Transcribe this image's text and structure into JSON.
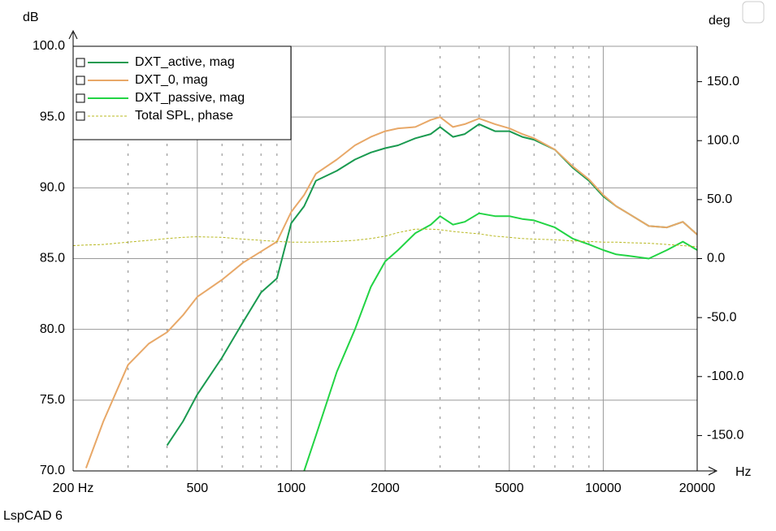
{
  "chart_data": {
    "type": "line",
    "y_label": "dB",
    "y2_label": "deg",
    "x_label": "Hz",
    "footer": "LspCAD 6",
    "xscale": "log",
    "grid": true,
    "legend": "upper left",
    "x": [
      200,
      220,
      250,
      300,
      350,
      400,
      450,
      500,
      600,
      700,
      800,
      900,
      1000,
      1100,
      1200,
      1400,
      1600,
      1800,
      2000,
      2200,
      2500,
      2800,
      3000,
      3300,
      3600,
      4000,
      4500,
      5000,
      5500,
      6000,
      7000,
      8000,
      9000,
      10000,
      11000,
      12000,
      14000,
      16000,
      18000,
      20000
    ],
    "xlim": [
      200,
      20000
    ],
    "xticks": [
      {
        "value": 200,
        "label": "200 Hz"
      },
      500,
      1000,
      2000,
      5000,
      10000,
      20000
    ],
    "xgrid_minor": [
      300,
      400,
      600,
      700,
      800,
      900,
      3000,
      4000,
      6000,
      7000,
      8000,
      9000
    ],
    "ylim": [
      70,
      100
    ],
    "yticks": [
      {
        "value": 70,
        "label": "70.0"
      },
      {
        "value": 75,
        "label": "75.0"
      },
      {
        "value": 80,
        "label": "80.0"
      },
      {
        "value": 85,
        "label": "85.0"
      },
      {
        "value": 90,
        "label": "90.0"
      },
      {
        "value": 95,
        "label": "95.0"
      },
      {
        "value": 100,
        "label": "100.0"
      }
    ],
    "y2lim": [
      -180,
      180
    ],
    "y2ticks": [
      {
        "value": -150,
        "label": "-150.0"
      },
      {
        "value": -100,
        "label": "-100.0"
      },
      {
        "value": -50,
        "label": "-50.0"
      },
      {
        "value": 0,
        "label": "0.0"
      },
      {
        "value": 50,
        "label": "50.0"
      },
      {
        "value": 100,
        "label": "100.0"
      },
      {
        "value": 150,
        "label": "150.0"
      }
    ],
    "series": [
      {
        "name": "DXT_active, mag",
        "color": "#1a9a50",
        "style": "solid",
        "values": [
          null,
          null,
          null,
          null,
          null,
          71.8,
          73.5,
          75.4,
          78.0,
          80.5,
          82.6,
          83.6,
          87.5,
          88.7,
          90.5,
          91.2,
          92.0,
          92.5,
          92.8,
          93.0,
          93.5,
          93.8,
          94.3,
          93.6,
          93.8,
          94.5,
          94.0,
          94.0,
          93.6,
          93.4,
          92.7,
          91.4,
          90.5,
          89.4,
          88.7,
          88.2,
          87.3,
          87.2,
          87.6,
          86.7
        ]
      },
      {
        "name": "DXT_0, mag",
        "color": "#e8a868",
        "style": "solid",
        "values": [
          null,
          70.2,
          73.5,
          77.5,
          79.0,
          79.8,
          81.0,
          82.3,
          83.5,
          84.7,
          85.5,
          86.2,
          88.3,
          89.5,
          91.0,
          92.0,
          93.0,
          93.6,
          94.0,
          94.2,
          94.3,
          94.8,
          95.0,
          94.3,
          94.5,
          94.9,
          94.5,
          94.2,
          93.8,
          93.5,
          92.7,
          91.5,
          90.6,
          89.5,
          88.7,
          88.2,
          87.3,
          87.2,
          87.6,
          86.7
        ]
      },
      {
        "name": "DXT_passive, mag",
        "color": "#22d444",
        "style": "solid",
        "values": [
          null,
          null,
          null,
          null,
          null,
          null,
          null,
          null,
          null,
          null,
          null,
          null,
          null,
          70.0,
          72.5,
          77.0,
          80.0,
          83.0,
          84.8,
          85.6,
          86.8,
          87.4,
          88.0,
          87.4,
          87.6,
          88.2,
          88.0,
          88.0,
          87.8,
          87.7,
          87.2,
          86.4,
          86.0,
          85.6,
          85.3,
          85.2,
          85.0,
          85.6,
          86.2,
          85.6
        ]
      },
      {
        "name": "Total SPL, phase",
        "color": "#b8b820",
        "style": "dashed",
        "axis": "y2",
        "values": [
          11,
          11.5,
          12,
          14,
          15.5,
          17,
          18,
          18.5,
          18,
          16.5,
          15.5,
          14.5,
          14,
          14,
          14,
          14.5,
          15.5,
          17,
          19,
          22,
          25,
          25,
          24.5,
          23,
          22,
          21,
          19,
          18,
          17,
          16.5,
          16,
          15,
          14.5,
          14,
          14,
          13.5,
          13,
          12,
          11,
          10
        ]
      }
    ]
  }
}
